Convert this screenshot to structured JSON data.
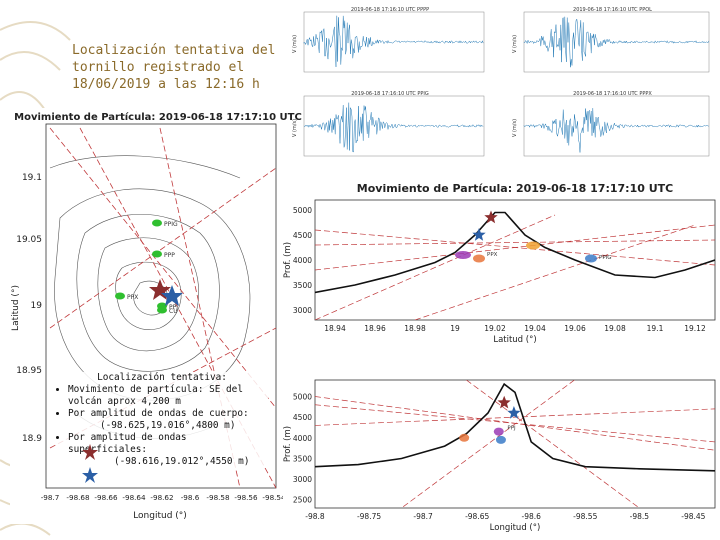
{
  "title_text": "Localización tentativa del tornillo registrado el 18/06/2019 a las 12:16 h",
  "colors": {
    "accent_gold": "#b89a55",
    "title_gold": "#8a6a2a",
    "signal_blue": "#1f77b4",
    "star_red": "#8b2e2e",
    "star_blue": "#2b5fa6",
    "station_green": "#2fbf2f",
    "dashed_red": "#c0393b"
  },
  "map": {
    "title": "Movimiento de Partícula: 2019-06-18 17:17:10 UTC",
    "xlabel": "Longitud (°)",
    "ylabel": "Latitud (°)",
    "y_ticks": [
      "19.1",
      "19.05",
      "19",
      "18.95",
      "18.9"
    ],
    "x_ticks": [
      "-98.7",
      "-98.68",
      "-98.66",
      "-98.64",
      "-98.62",
      "-98.6",
      "-98.58",
      "-98.56",
      "-98.54"
    ],
    "stations": [
      {
        "label": "PPIG",
        "name": "station-ppig"
      },
      {
        "label": "PPP",
        "name": "station-ppp"
      },
      {
        "label": "PPX",
        "name": "station-ppx"
      },
      {
        "label": "PPJ",
        "name": "station-ppj"
      },
      {
        "label": "CU",
        "name": "station-cu"
      }
    ]
  },
  "seismograms": [
    {
      "title": "2019-06-18 17:16:10 UTC PPPP",
      "channel": "PPPP",
      "ylabel": "V (m/s)"
    },
    {
      "title": "2019-06-18 17:16:10 UTC PPOL",
      "channel": "PPOL",
      "ylabel": "V (m/s)"
    },
    {
      "title": "2019-06-18 17:16:10 UTC PPIG",
      "channel": "PPIG",
      "ylabel": "V (m/s)"
    },
    {
      "title": "2019-06-18 17:16:10 UTC PPPX",
      "channel": "PPPX",
      "ylabel": "V (m/s)"
    }
  ],
  "lat_profile": {
    "title": "Movimiento de Partícula: 2019-06-18 17:17:10 UTC",
    "xlabel": "Latitud (°)",
    "ylabel": "Prof. (m)",
    "x_ticks": [
      "18.94",
      "18.96",
      "18.98",
      "19",
      "19.02",
      "19.04",
      "19.06",
      "19.08",
      "19.1",
      "19.12"
    ],
    "y_ticks": [
      "5000",
      "4500",
      "4000",
      "3500",
      "3000"
    ],
    "ylim": [
      2800,
      5200
    ],
    "xlim": [
      18.93,
      19.13
    ],
    "labels": [
      "PPX",
      "PPIG"
    ]
  },
  "lon_profile": {
    "xlabel": "Longitud (°)",
    "ylabel": "Prof. (m)",
    "x_ticks": [
      "-98.8",
      "-98.75",
      "-98.7",
      "-98.65",
      "-98.6",
      "-98.55",
      "-98.5",
      "-98.45"
    ],
    "y_ticks": [
      "5000",
      "4500",
      "4000",
      "3500",
      "3000",
      "2500"
    ],
    "ylim": [
      2300,
      5400
    ],
    "xlim": [
      -98.8,
      -98.43
    ],
    "labels": [
      "PPJ"
    ]
  },
  "notes": {
    "heading": "Localización tentativa:",
    "item1": "Movimiento de partícula: SE del volcán aprox 4,200 m",
    "item2": "Por amplitud de ondas de cuerpo:",
    "item2_value": "(-98.625,19.016°,4800 m)",
    "item3": "Por amplitud de ondas superficiales:",
    "item3_value": "(-98.616,19.012°,4550 m)"
  }
}
